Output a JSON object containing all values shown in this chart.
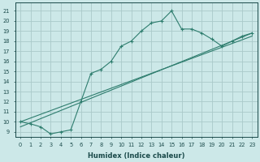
{
  "line1_x": [
    0,
    1,
    2,
    3,
    4,
    5,
    6,
    7,
    8,
    9,
    10,
    11,
    12,
    13,
    14,
    15,
    16,
    17,
    18,
    19,
    20,
    21,
    22,
    23
  ],
  "line1_y": [
    10.0,
    9.8,
    9.5,
    8.8,
    9.0,
    9.2,
    12.0,
    14.8,
    15.2,
    16.0,
    17.5,
    18.0,
    19.0,
    19.8,
    20.0,
    21.0,
    19.2,
    19.2,
    18.8,
    18.2,
    17.5,
    18.0,
    18.5,
    18.8
  ],
  "line2_x": [
    0,
    23
  ],
  "line2_y": [
    10.0,
    18.5
  ],
  "line3_x": [
    0,
    23
  ],
  "line3_y": [
    9.5,
    18.8
  ],
  "line_color": "#2e7d6e",
  "marker1": "+",
  "bg_color": "#cce8e8",
  "grid_color": "#aacaca",
  "xlabel": "Humidex (Indice chaleur)",
  "ylabel_ticks": [
    9,
    10,
    11,
    12,
    13,
    14,
    15,
    16,
    17,
    18,
    19,
    20,
    21
  ],
  "xlabel_ticks": [
    0,
    1,
    2,
    3,
    4,
    5,
    6,
    7,
    8,
    9,
    10,
    11,
    12,
    13,
    14,
    15,
    16,
    17,
    18,
    19,
    20,
    21,
    22,
    23
  ],
  "ylim": [
    8.5,
    21.8
  ],
  "xlim": [
    -0.5,
    23.5
  ]
}
